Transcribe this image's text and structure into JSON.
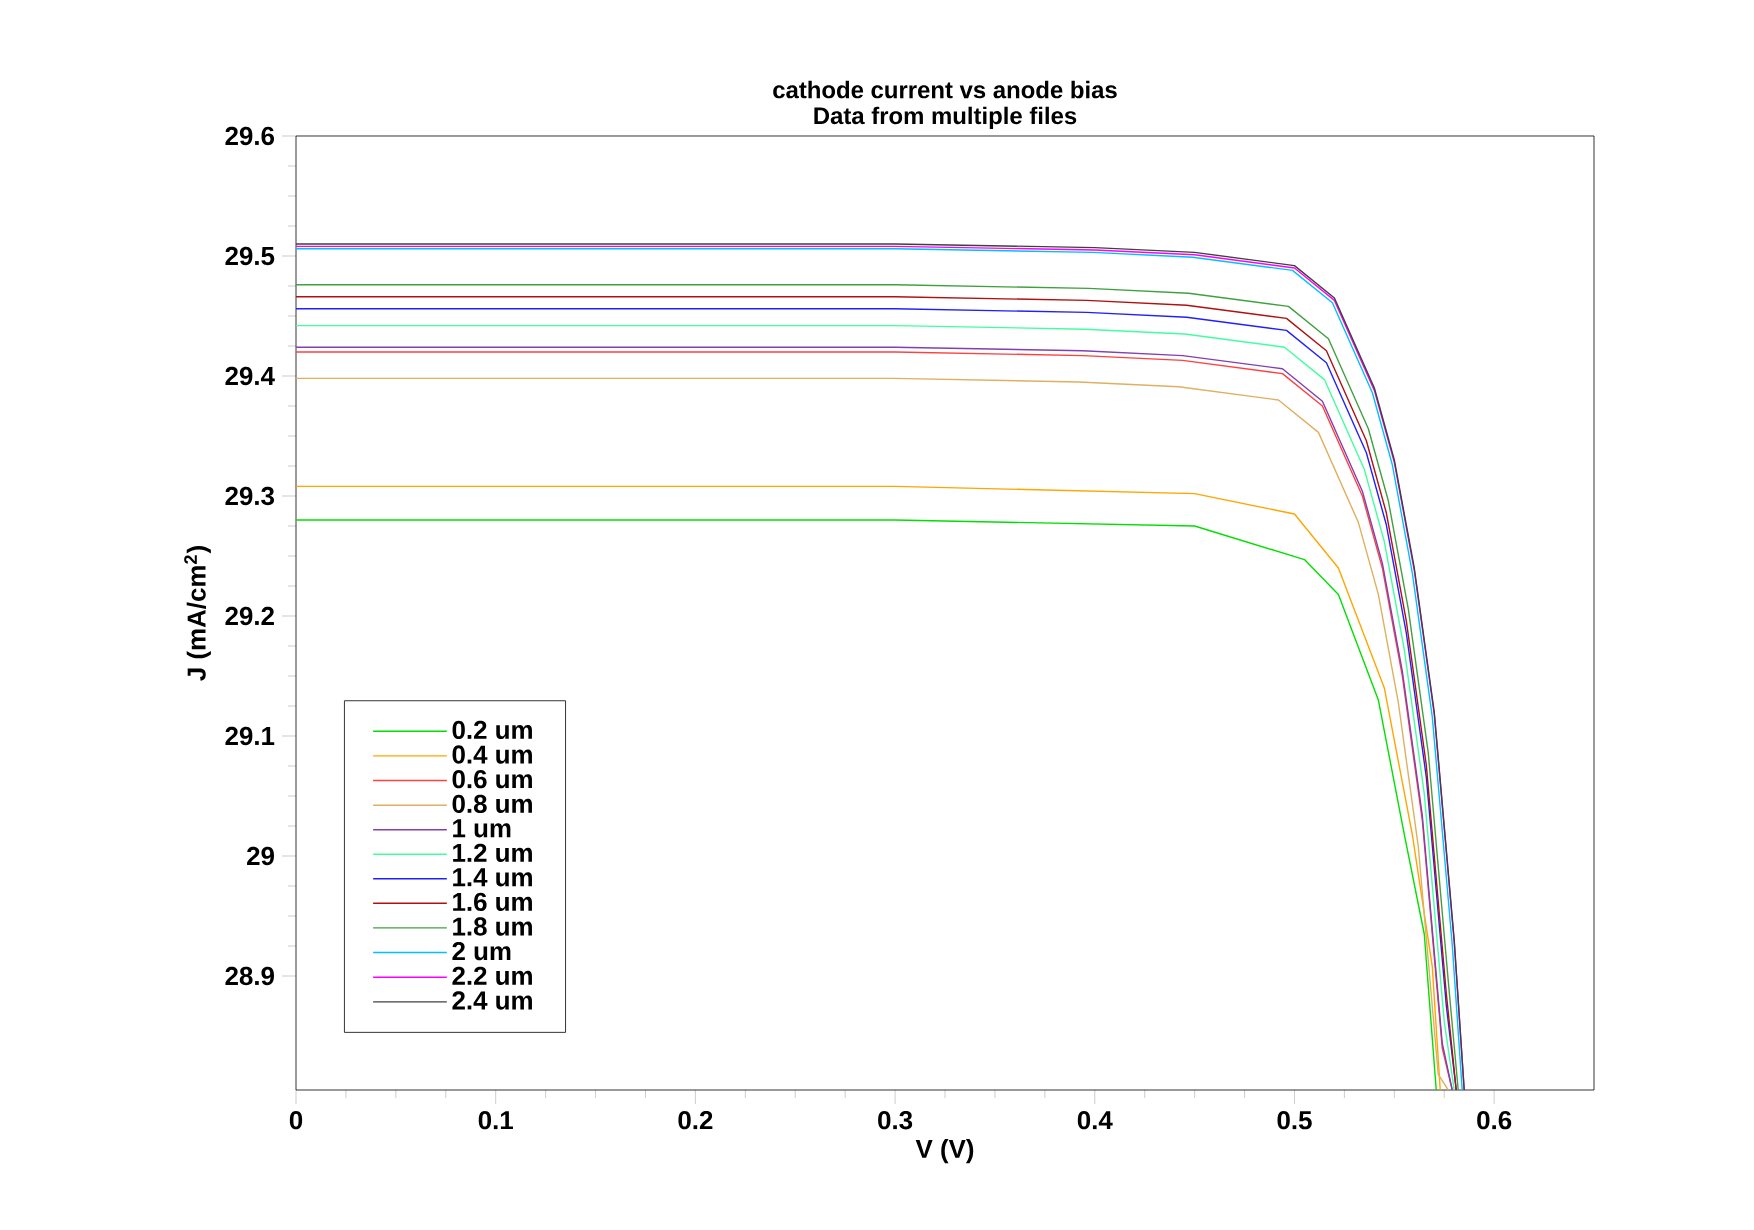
{
  "chart_data": {
    "type": "line",
    "title": "cathode current vs anode bias",
    "subtitle": "Data from multiple files",
    "xlabel": "V (V)",
    "ylabel": "J (mA/cm$^{2}$)",
    "xlim": [
      0,
      0.65
    ],
    "ylim": [
      28.805,
      29.6
    ],
    "xticks": [
      0,
      0.1,
      0.2,
      0.3,
      0.4,
      0.5,
      0.6
    ],
    "yticks": [
      28.9,
      29,
      29.1,
      29.2,
      29.3,
      29.4,
      29.5,
      29.6
    ],
    "grid": false,
    "legend": "bottom left",
    "series": [
      {
        "name": "0.2 um",
        "color": "#00e000",
        "x": [
          0,
          0.1,
          0.2,
          0.3,
          0.45,
          0.505,
          0.522,
          0.542,
          0.555,
          0.565,
          0.571
        ],
        "values": [
          29.28,
          29.28,
          29.28,
          29.28,
          29.275,
          29.247,
          29.218,
          29.13,
          29.018,
          28.935,
          28.805
        ]
      },
      {
        "name": "0.4 um",
        "color": "#ffa500",
        "x": [
          0,
          0.1,
          0.2,
          0.3,
          0.45,
          0.5,
          0.522,
          0.545,
          0.559,
          0.569,
          0.573
        ],
        "values": [
          29.308,
          29.308,
          29.308,
          29.308,
          29.302,
          29.285,
          29.24,
          29.14,
          29.018,
          28.908,
          28.805
        ]
      },
      {
        "name": "0.6 um",
        "color": "#ff4040",
        "x": [
          0,
          0.1,
          0.2,
          0.3,
          0.394,
          0.444,
          0.494,
          0.514,
          0.534,
          0.544,
          0.554,
          0.564,
          0.574,
          0.579
        ],
        "values": [
          29.42,
          29.42,
          29.42,
          29.42,
          29.417,
          29.413,
          29.402,
          29.375,
          29.3,
          29.24,
          29.15,
          29.03,
          28.84,
          28.805
        ]
      },
      {
        "name": "0.8 um",
        "color": "#deb060",
        "x": [
          0,
          0.1,
          0.2,
          0.3,
          0.392,
          0.442,
          0.492,
          0.512,
          0.532,
          0.542,
          0.552,
          0.562,
          0.572,
          0.577
        ],
        "values": [
          29.398,
          29.398,
          29.398,
          29.398,
          29.395,
          29.391,
          29.38,
          29.353,
          29.278,
          29.218,
          29.128,
          29.008,
          28.818,
          28.805
        ]
      },
      {
        "name": "1 um",
        "color": "#8040b0",
        "x": [
          0,
          0.1,
          0.2,
          0.3,
          0.394,
          0.444,
          0.494,
          0.514,
          0.534,
          0.544,
          0.554,
          0.564,
          0.574,
          0.579
        ],
        "values": [
          29.424,
          29.424,
          29.424,
          29.424,
          29.421,
          29.417,
          29.406,
          29.379,
          29.304,
          29.244,
          29.154,
          29.034,
          28.844,
          28.805
        ]
      },
      {
        "name": "1.2 um",
        "color": "#40ffa0",
        "x": [
          0,
          0.1,
          0.2,
          0.3,
          0.395,
          0.445,
          0.495,
          0.515,
          0.535,
          0.545,
          0.555,
          0.565,
          0.575,
          0.58
        ],
        "values": [
          29.442,
          29.442,
          29.442,
          29.442,
          29.439,
          29.435,
          29.424,
          29.397,
          29.322,
          29.262,
          29.172,
          29.052,
          28.862,
          28.805
        ]
      },
      {
        "name": "1.4 um",
        "color": "#2020ff",
        "x": [
          0,
          0.1,
          0.2,
          0.3,
          0.396,
          0.446,
          0.496,
          0.516,
          0.536,
          0.546,
          0.556,
          0.566,
          0.576,
          0.581
        ],
        "values": [
          29.456,
          29.456,
          29.456,
          29.456,
          29.453,
          29.449,
          29.438,
          29.411,
          29.336,
          29.276,
          29.186,
          29.066,
          28.876,
          28.805
        ]
      },
      {
        "name": "1.6 um",
        "color": "#b01010",
        "x": [
          0,
          0.1,
          0.2,
          0.3,
          0.396,
          0.446,
          0.496,
          0.516,
          0.536,
          0.546,
          0.556,
          0.566,
          0.576,
          0.581
        ],
        "values": [
          29.466,
          29.466,
          29.466,
          29.466,
          29.463,
          29.459,
          29.448,
          29.421,
          29.346,
          29.286,
          29.196,
          29.076,
          28.886,
          28.805
        ]
      },
      {
        "name": "1.8 um",
        "color": "#40a040",
        "x": [
          0,
          0.1,
          0.2,
          0.3,
          0.397,
          0.447,
          0.497,
          0.517,
          0.537,
          0.547,
          0.557,
          0.567,
          0.577,
          0.582
        ],
        "values": [
          29.476,
          29.476,
          29.476,
          29.476,
          29.473,
          29.469,
          29.458,
          29.431,
          29.356,
          29.296,
          29.206,
          29.086,
          28.896,
          28.805
        ]
      },
      {
        "name": "2 um",
        "color": "#00c0ff",
        "x": [
          0,
          0.1,
          0.2,
          0.3,
          0.399,
          0.449,
          0.499,
          0.519,
          0.539,
          0.549,
          0.559,
          0.569,
          0.579,
          0.584
        ],
        "values": [
          29.506,
          29.506,
          29.506,
          29.506,
          29.503,
          29.499,
          29.488,
          29.461,
          29.386,
          29.326,
          29.236,
          29.116,
          28.926,
          28.805
        ]
      },
      {
        "name": "2.2 um",
        "color": "#ff00ff",
        "x": [
          0,
          0.1,
          0.2,
          0.3,
          0.4,
          0.45,
          0.5,
          0.52,
          0.54,
          0.55,
          0.56,
          0.57,
          0.58,
          0.585
        ],
        "values": [
          29.508,
          29.508,
          29.508,
          29.508,
          29.505,
          29.501,
          29.49,
          29.463,
          29.388,
          29.328,
          29.238,
          29.118,
          28.928,
          28.805
        ]
      },
      {
        "name": "2.4 um",
        "color": "#404040",
        "x": [
          0,
          0.1,
          0.2,
          0.3,
          0.4,
          0.45,
          0.5,
          0.52,
          0.54,
          0.55,
          0.56,
          0.57,
          0.58,
          0.585
        ],
        "values": [
          29.51,
          29.51,
          29.51,
          29.51,
          29.507,
          29.503,
          29.492,
          29.465,
          29.39,
          29.33,
          29.24,
          29.12,
          28.93,
          28.805
        ]
      }
    ]
  }
}
